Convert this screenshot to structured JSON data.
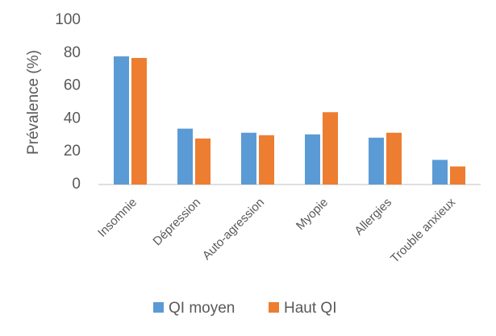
{
  "chart_data": {
    "type": "bar",
    "y_label": "Prévalence (%)",
    "categories": [
      "Insomnie",
      "Dépression",
      "Auto-agression",
      "Myopie",
      "Allergies",
      "Trouble anxieux"
    ],
    "series": [
      {
        "name": "QI moyen",
        "color": "#5b9bd5",
        "values": [
          78,
          34,
          31.5,
          30.5,
          28.5,
          15
        ]
      },
      {
        "name": "Haut QI",
        "color": "#ed7d31",
        "values": [
          77,
          28,
          30,
          44,
          31.5,
          11
        ]
      }
    ],
    "ylim": [
      0,
      100
    ],
    "yticks": [
      0,
      20,
      40,
      60,
      80,
      100
    ],
    "grid": false,
    "legend": "bottom"
  }
}
